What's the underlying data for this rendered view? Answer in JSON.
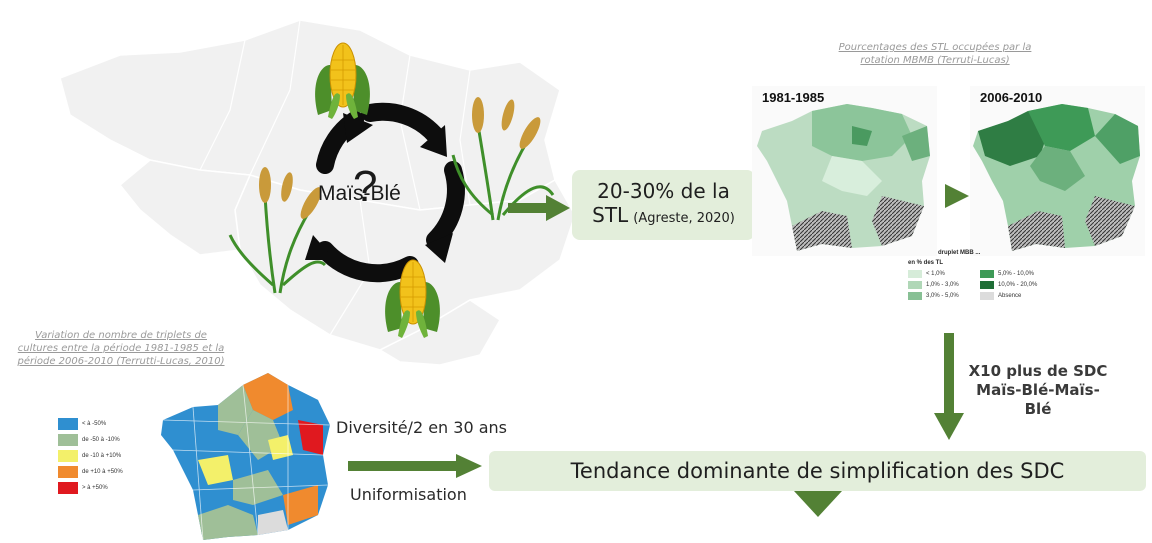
{
  "rotation": {
    "label": "Maïs-Blé",
    "question": "?"
  },
  "stl_box": {
    "main": "20-30% de la STL",
    "line1": "20-30% de la",
    "line2_main": "STL",
    "source": "(Agreste, 2020)"
  },
  "map_caption": {
    "line1": "Pourcentages des STL occupées par la",
    "line2_main": "rotation MBMB",
    "line2_source": "(Terruti-Lucas)"
  },
  "period_maps": {
    "first": "1981-1985",
    "second": "2006-2010"
  },
  "period_legend": {
    "title": "druplet MBB ...",
    "subtitle": "en % des TL",
    "items": [
      "< 1,0%",
      "1,0% - 3,0%",
      "3,0% - 5,0%",
      "5,0% - 10,0%",
      "10,0% - 20,0%",
      "Absence"
    ],
    "colors": [
      "#d6ecd9",
      "#b0d7b7",
      "#88c095",
      "#3e9a57",
      "#1f6e36",
      "#dcdcdc"
    ]
  },
  "sdc_x10": {
    "line1": "X10 plus de SDC",
    "line2": "Maïs-Blé-Maïs-",
    "line3": "Blé"
  },
  "triplet_caption": {
    "line1": "Variation de nombre de triplets de",
    "line2": "cultures entre la période 1981-1985 et la",
    "line3": "période 2006-2010 (Terrutti-Lucas, 2010)"
  },
  "triplet_legend": {
    "items": [
      "< à -50%",
      "de -50 à -10%",
      "de -10 à +10%",
      "de +10 à +50%",
      "> à +50%"
    ],
    "colors": [
      "#2f8fd0",
      "#9fbf98",
      "#f3f06a",
      "#f08a2e",
      "#e0191f"
    ]
  },
  "diversity_label": "Diversité/2 en 30 ans",
  "uniformisation_label": "Uniformisation",
  "trend_box": "Tendance dominante de simplification des SDC",
  "colors": {
    "arrow_green": "#538135",
    "box_bg": "#e3eedb",
    "cycle_arrow": "#0d0d0d"
  }
}
